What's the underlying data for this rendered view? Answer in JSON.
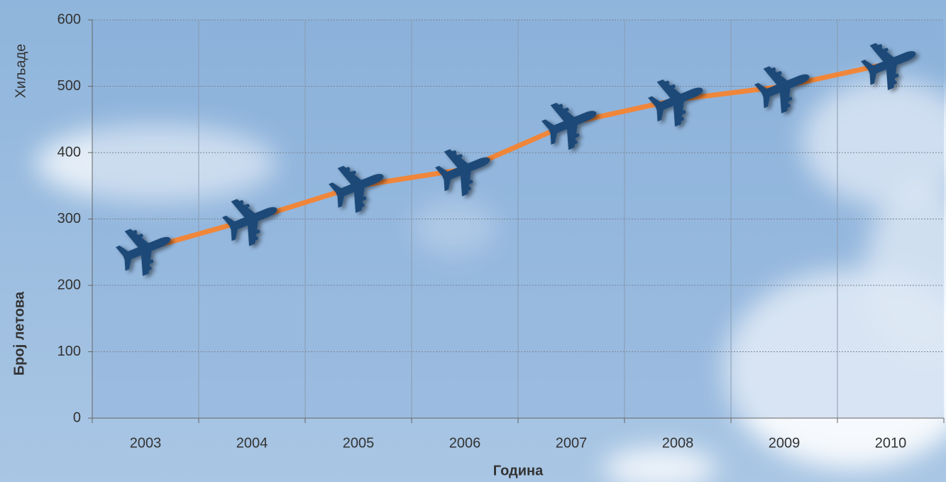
{
  "chart_data": {
    "type": "line",
    "x_label": "Година",
    "y_label": "Број летова",
    "y_unit_label": "Хиљаде",
    "categories": [
      "2003",
      "2004",
      "2005",
      "2006",
      "2007",
      "2008",
      "2009",
      "2010"
    ],
    "series": [
      {
        "color": "#f0863a",
        "values": [
          255,
          300,
          350,
          375,
          445,
          480,
          500,
          535
        ]
      }
    ],
    "ylim": [
      0,
      600
    ],
    "yticks": [
      0,
      100,
      200,
      300,
      400,
      500,
      600
    ],
    "grid": true
  }
}
